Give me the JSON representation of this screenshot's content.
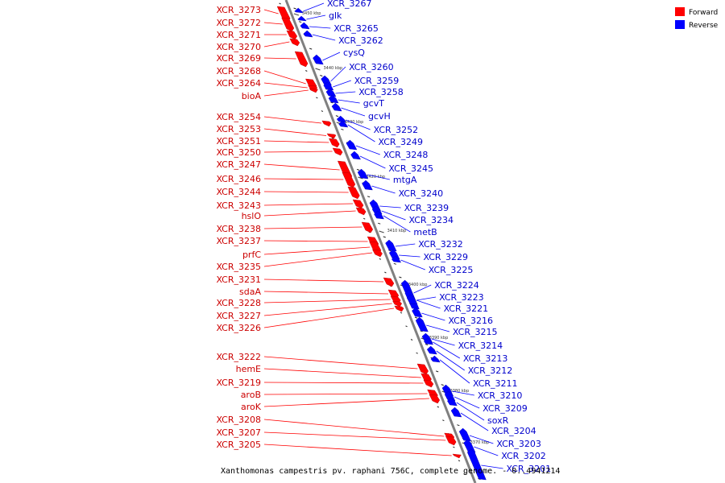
{
  "colors": {
    "forward": "#ff0000",
    "reverse": "#0000ff",
    "backbone": "#808080"
  },
  "legend": [
    {
      "label": "Forward",
      "strand": "forward"
    },
    {
      "label": "Reverse",
      "strand": "reverse"
    }
  ],
  "caption": "Xanthomonas campestris pv. raphani 756C, complete genome. - 0..4941214",
  "ticks": [
    "3450 kbp",
    "3440 kbp",
    "3430 kbp",
    "3420 kbp",
    "3410 kbp",
    "3400 kbp",
    "3390 kbp",
    "3380 kbp",
    "3370 kbp"
  ],
  "forward_genes": [
    "XCR_3273",
    "XCR_3272",
    "XCR_3271",
    "XCR_3270",
    "XCR_3269",
    "XCR_3268",
    "XCR_3264",
    "bioA",
    "XCR_3254",
    "XCR_3253",
    "XCR_3251",
    "XCR_3250",
    "XCR_3247",
    "XCR_3246",
    "XCR_3244",
    "XCR_3243",
    "hslO",
    "XCR_3238",
    "XCR_3237",
    "prfC",
    "XCR_3235",
    "XCR_3231",
    "sdaA",
    "XCR_3228",
    "XCR_3227",
    "XCR_3226",
    "XCR_3222",
    "hemE",
    "XCR_3219",
    "aroB",
    "aroK",
    "XCR_3208",
    "XCR_3207",
    "XCR_3205"
  ],
  "reverse_genes": [
    "XCR_3267",
    "glk",
    "XCR_3265",
    "XCR_3262",
    "cysQ",
    "XCR_3260",
    "XCR_3259",
    "XCR_3258",
    "gcvT",
    "gcvH",
    "XCR_3252",
    "XCR_3249",
    "XCR_3248",
    "XCR_3245",
    "mtgA",
    "XCR_3240",
    "XCR_3239",
    "XCR_3234",
    "metB",
    "XCR_3232",
    "XCR_3229",
    "XCR_3225",
    "XCR_3224",
    "XCR_3223",
    "XCR_3221",
    "XCR_3216",
    "XCR_3215",
    "XCR_3214",
    "XCR_3213",
    "XCR_3212",
    "XCR_3211",
    "XCR_3210",
    "XCR_3209",
    "soxR",
    "XCR_3204",
    "XCR_3203",
    "XCR_3202",
    "XCR_3201"
  ]
}
